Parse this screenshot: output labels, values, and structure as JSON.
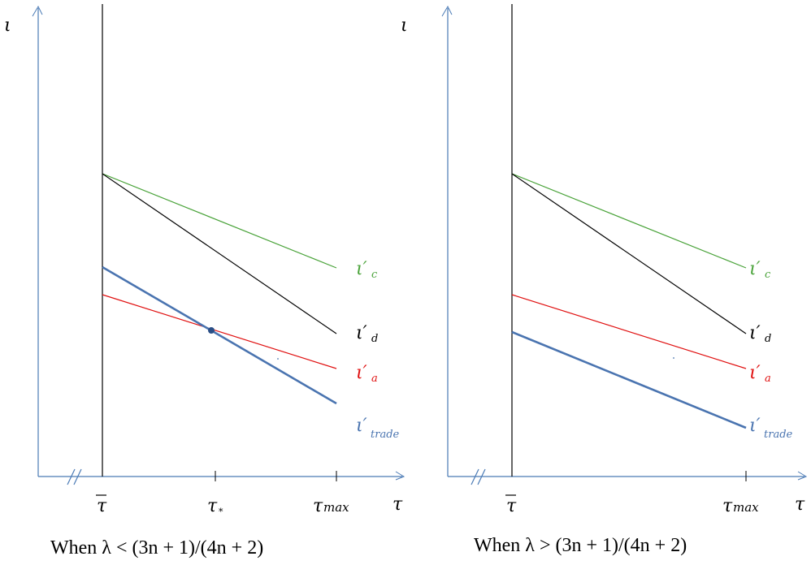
{
  "colors": {
    "axis": "#4a7ab5",
    "black": "#000000",
    "green": "#4aa33a",
    "red": "#e01010",
    "blue": "#4a74b0"
  },
  "left": {
    "y_axis_label": "ι",
    "x_axis_label": "τ",
    "tick_labels": [
      "τ̄",
      "τ_*",
      "τ_max"
    ],
    "labels": {
      "green": "ι′_c",
      "black": "ι′_d",
      "red": "ι′_a",
      "blue": "ι′_trade"
    },
    "caption": "When λ < (3n + 1)/(4n + 2)"
  },
  "right": {
    "y_axis_label": "ι",
    "x_axis_label": "τ",
    "tick_labels": [
      "τ̄",
      "τ_max"
    ],
    "labels": {
      "green": "ι′_c",
      "black": "ι′_d",
      "red": "ι′_a",
      "blue": "ι′_trade"
    },
    "caption": "When λ > (3n + 1)/(4n + 2)"
  }
}
